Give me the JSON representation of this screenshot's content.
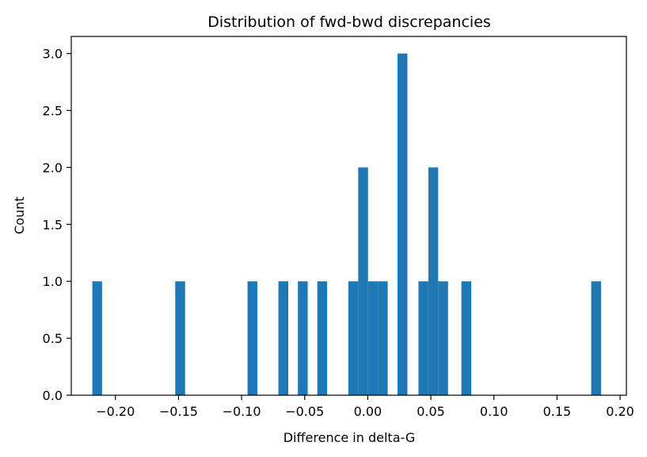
{
  "chart_data": {
    "type": "bar",
    "title": "Distribution of fwd-bwd discrepancies",
    "xlabel": "Difference in delta-G",
    "ylabel": "Count",
    "xlim": [
      -0.235,
      0.205
    ],
    "ylim": [
      0,
      3.15
    ],
    "grid": false,
    "bar_color": "#1f77b4",
    "bins": [
      {
        "x0": -0.2183,
        "x1": -0.2106,
        "count": 1
      },
      {
        "x0": -0.1526,
        "x1": -0.1448,
        "count": 1
      },
      {
        "x0": -0.0953,
        "x1": -0.0875,
        "count": 1
      },
      {
        "x0": -0.0708,
        "x1": -0.063,
        "count": 1
      },
      {
        "x0": -0.0554,
        "x1": -0.0476,
        "count": 1
      },
      {
        "x0": -0.04,
        "x1": -0.0322,
        "count": 1
      },
      {
        "x0": -0.0154,
        "x1": -0.0076,
        "count": 1
      },
      {
        "x0": -0.0076,
        "x1": 0.0002,
        "count": 2
      },
      {
        "x0": 0.0002,
        "x1": 0.008,
        "count": 1
      },
      {
        "x0": 0.008,
        "x1": 0.0158,
        "count": 1
      },
      {
        "x0": 0.0236,
        "x1": 0.0314,
        "count": 3
      },
      {
        "x0": 0.0402,
        "x1": 0.048,
        "count": 1
      },
      {
        "x0": 0.048,
        "x1": 0.0558,
        "count": 2
      },
      {
        "x0": 0.0558,
        "x1": 0.0636,
        "count": 1
      },
      {
        "x0": 0.0742,
        "x1": 0.082,
        "count": 1
      },
      {
        "x0": 0.1771,
        "x1": 0.1849,
        "count": 1
      }
    ],
    "x_ticks": [
      {
        "value": -0.2,
        "label": "−0.20"
      },
      {
        "value": -0.15,
        "label": "−0.15"
      },
      {
        "value": -0.1,
        "label": "−0.10"
      },
      {
        "value": -0.05,
        "label": "−0.05"
      },
      {
        "value": 0.0,
        "label": "0.00"
      },
      {
        "value": 0.05,
        "label": "0.05"
      },
      {
        "value": 0.1,
        "label": "0.10"
      },
      {
        "value": 0.15,
        "label": "0.15"
      },
      {
        "value": 0.2,
        "label": "0.20"
      }
    ],
    "y_ticks": [
      {
        "value": 0.0,
        "label": "0.0"
      },
      {
        "value": 0.5,
        "label": "0.5"
      },
      {
        "value": 1.0,
        "label": "1.0"
      },
      {
        "value": 1.5,
        "label": "1.5"
      },
      {
        "value": 2.0,
        "label": "2.0"
      },
      {
        "value": 2.5,
        "label": "2.5"
      },
      {
        "value": 3.0,
        "label": "3.0"
      }
    ]
  }
}
